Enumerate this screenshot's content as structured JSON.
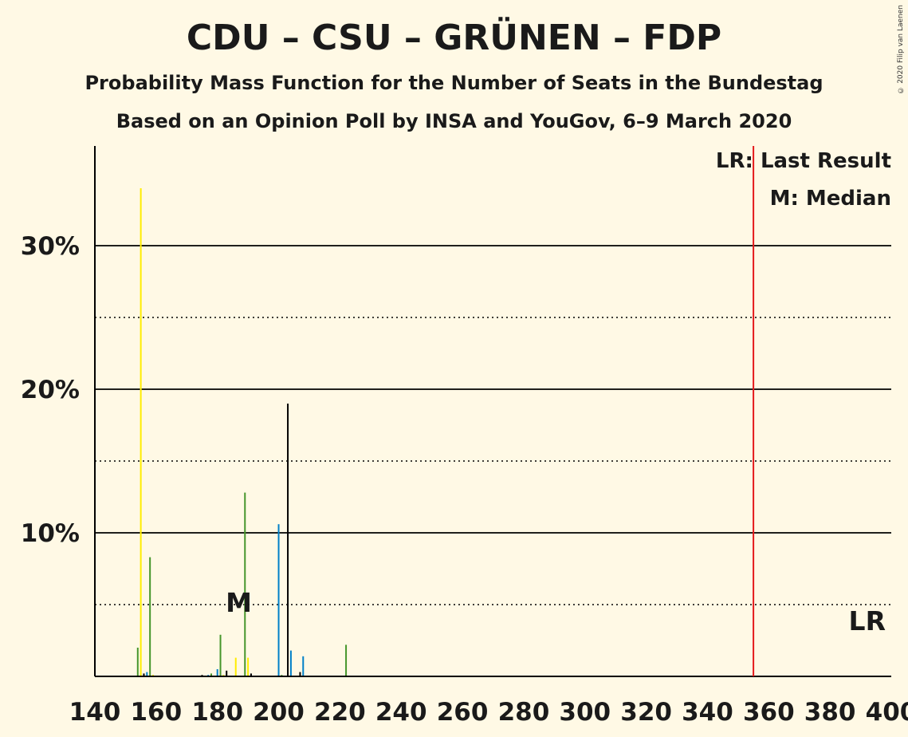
{
  "header": {
    "title": "CDU – CSU – GRÜNEN – FDP",
    "subtitle1": "Probability Mass Function for the Number of Seats in the Bundestag",
    "subtitle2": "Based on an Opinion Poll by INSA and YouGov, 6–9 March 2020",
    "copyright": "© 2020 Filip van Laenen"
  },
  "legend": {
    "lr": "LR: Last Result",
    "median": "M: Median"
  },
  "markers": {
    "median_label": "M",
    "lr_label": "LR"
  },
  "colors": {
    "background": "#FFF9E5",
    "cdu": "#000000",
    "csu": "#0080C8",
    "gruenen": "#46962B",
    "fdp": "#FFED00",
    "last_result_line": "#E41A1C"
  },
  "chart_data": {
    "type": "bar",
    "title": "CDU – CSU – GRÜNEN – FDP",
    "xlabel": "",
    "ylabel": "",
    "xlim": [
      140,
      400
    ],
    "ylim": [
      0,
      37
    ],
    "x_ticks": [
      "140",
      "160",
      "180",
      "200",
      "220",
      "240",
      "260",
      "280",
      "300",
      "320",
      "340",
      "360",
      "380",
      "400"
    ],
    "y_ticks": [
      {
        "value": 10,
        "label": "10%"
      },
      {
        "value": 20,
        "label": "20%"
      },
      {
        "value": 30,
        "label": "30%"
      }
    ],
    "gridlines": {
      "solid": [
        10,
        20,
        30
      ],
      "dotted": [
        5,
        15,
        25
      ]
    },
    "median": 187,
    "last_result": 355,
    "bars": [
      {
        "seats": 154,
        "value": 2.0,
        "party": "gruenen"
      },
      {
        "seats": 155,
        "value": 34.0,
        "party": "fdp"
      },
      {
        "seats": 156,
        "value": 0.2,
        "party": "cdu"
      },
      {
        "seats": 157,
        "value": 0.3,
        "party": "csu"
      },
      {
        "seats": 158,
        "value": 8.3,
        "party": "gruenen"
      },
      {
        "seats": 159,
        "value": 0.1,
        "party": "fdp"
      },
      {
        "seats": 175,
        "value": 0.1,
        "party": "cdu"
      },
      {
        "seats": 177,
        "value": 0.1,
        "party": "csu"
      },
      {
        "seats": 178,
        "value": 0.2,
        "party": "gruenen"
      },
      {
        "seats": 180,
        "value": 0.5,
        "party": "csu"
      },
      {
        "seats": 181,
        "value": 2.9,
        "party": "gruenen"
      },
      {
        "seats": 182,
        "value": 0.1,
        "party": "fdp"
      },
      {
        "seats": 183,
        "value": 0.4,
        "party": "cdu"
      },
      {
        "seats": 186,
        "value": 1.3,
        "party": "fdp"
      },
      {
        "seats": 189,
        "value": 12.8,
        "party": "gruenen"
      },
      {
        "seats": 190,
        "value": 1.3,
        "party": "fdp"
      },
      {
        "seats": 191,
        "value": 0.2,
        "party": "cdu"
      },
      {
        "seats": 200,
        "value": 10.6,
        "party": "csu"
      },
      {
        "seats": 201,
        "value": 0.1,
        "party": "gruenen"
      },
      {
        "seats": 203,
        "value": 19.0,
        "party": "cdu"
      },
      {
        "seats": 204,
        "value": 1.8,
        "party": "csu"
      },
      {
        "seats": 207,
        "value": 0.3,
        "party": "cdu"
      },
      {
        "seats": 208,
        "value": 1.4,
        "party": "csu"
      },
      {
        "seats": 222,
        "value": 2.2,
        "party": "gruenen"
      }
    ]
  }
}
